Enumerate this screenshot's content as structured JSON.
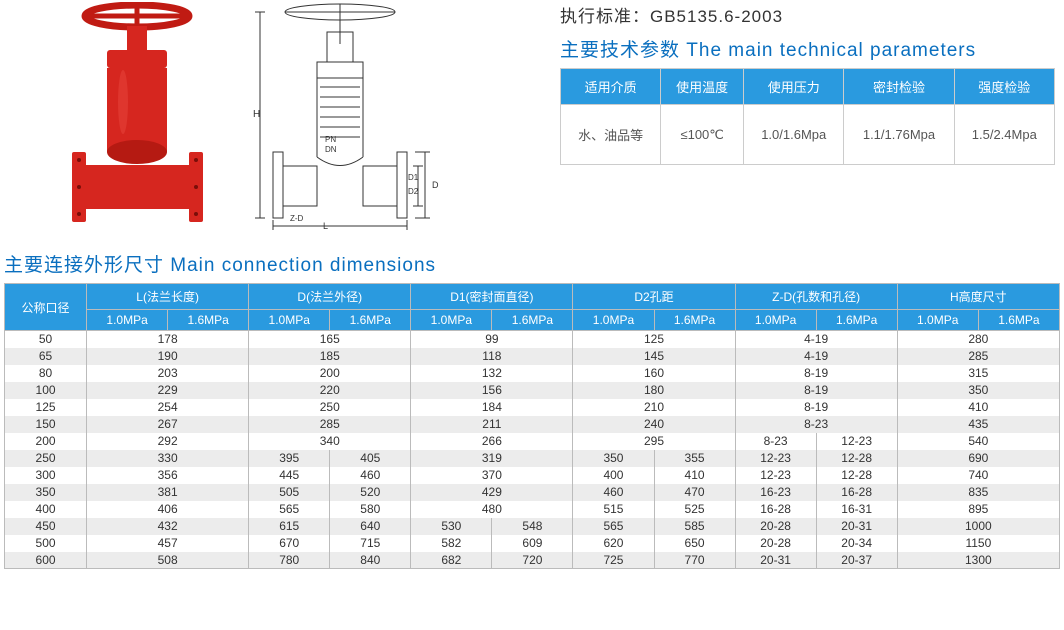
{
  "standard_label": "执行标准：",
  "standard_value": "GB5135.6-2003",
  "params_title": "主要技术参数 The main technical parameters",
  "params_headers": [
    "适用介质",
    "使用温度",
    "使用压力",
    "密封检验",
    "强度检验"
  ],
  "params_row": [
    "水、油品等",
    "≤100℃",
    "1.0/1.6Mpa",
    "1.1/1.76Mpa",
    "1.5/2.4Mpa"
  ],
  "dims_title": "主要连接外形尺寸 Main connection dimensions",
  "dims_top_headers": [
    "公称口径",
    "L(法兰长度)",
    "D(法兰外径)",
    "D1(密封面直径)",
    "D2孔距",
    "Z-D(孔数和孔径)",
    "H高度尺寸"
  ],
  "dims_sub": [
    "1.0MPa",
    "1.6MPa"
  ],
  "dims_rows": [
    {
      "dn": "50",
      "L": [
        "178"
      ],
      "D": [
        "165"
      ],
      "D1": [
        "99"
      ],
      "D2": [
        "125"
      ],
      "ZD": [
        "4-19"
      ],
      "H": [
        "280"
      ]
    },
    {
      "dn": "65",
      "L": [
        "190"
      ],
      "D": [
        "185"
      ],
      "D1": [
        "118"
      ],
      "D2": [
        "145"
      ],
      "ZD": [
        "4-19"
      ],
      "H": [
        "285"
      ]
    },
    {
      "dn": "80",
      "L": [
        "203"
      ],
      "D": [
        "200"
      ],
      "D1": [
        "132"
      ],
      "D2": [
        "160"
      ],
      "ZD": [
        "8-19"
      ],
      "H": [
        "315"
      ]
    },
    {
      "dn": "100",
      "L": [
        "229"
      ],
      "D": [
        "220"
      ],
      "D1": [
        "156"
      ],
      "D2": [
        "180"
      ],
      "ZD": [
        "8-19"
      ],
      "H": [
        "350"
      ]
    },
    {
      "dn": "125",
      "L": [
        "254"
      ],
      "D": [
        "250"
      ],
      "D1": [
        "184"
      ],
      "D2": [
        "210"
      ],
      "ZD": [
        "8-19"
      ],
      "H": [
        "410"
      ]
    },
    {
      "dn": "150",
      "L": [
        "267"
      ],
      "D": [
        "285"
      ],
      "D1": [
        "211"
      ],
      "D2": [
        "240"
      ],
      "ZD": [
        "8-23"
      ],
      "H": [
        "435"
      ]
    },
    {
      "dn": "200",
      "L": [
        "292"
      ],
      "D": [
        "340"
      ],
      "D1": [
        "266"
      ],
      "D2": [
        "295"
      ],
      "ZD": [
        "8-23",
        "12-23"
      ],
      "H": [
        "540"
      ]
    },
    {
      "dn": "250",
      "L": [
        "330"
      ],
      "D": [
        "395",
        "405"
      ],
      "D1": [
        "319"
      ],
      "D2": [
        "350",
        "355"
      ],
      "ZD": [
        "12-23",
        "12-28"
      ],
      "H": [
        "690"
      ]
    },
    {
      "dn": "300",
      "L": [
        "356"
      ],
      "D": [
        "445",
        "460"
      ],
      "D1": [
        "370"
      ],
      "D2": [
        "400",
        "410"
      ],
      "ZD": [
        "12-23",
        "12-28"
      ],
      "H": [
        "740"
      ]
    },
    {
      "dn": "350",
      "L": [
        "381"
      ],
      "D": [
        "505",
        "520"
      ],
      "D1": [
        "429"
      ],
      "D2": [
        "460",
        "470"
      ],
      "ZD": [
        "16-23",
        "16-28"
      ],
      "H": [
        "835"
      ]
    },
    {
      "dn": "400",
      "L": [
        "406"
      ],
      "D": [
        "565",
        "580"
      ],
      "D1": [
        "480"
      ],
      "D2": [
        "515",
        "525"
      ],
      "ZD": [
        "16-28",
        "16-31"
      ],
      "H": [
        "895"
      ]
    },
    {
      "dn": "450",
      "L": [
        "432"
      ],
      "D": [
        "615",
        "640"
      ],
      "D1": [
        "530",
        "548"
      ],
      "D2": [
        "565",
        "585"
      ],
      "ZD": [
        "20-28",
        "20-31"
      ],
      "H": [
        "1000"
      ]
    },
    {
      "dn": "500",
      "L": [
        "457"
      ],
      "D": [
        "670",
        "715"
      ],
      "D1": [
        "582",
        "609"
      ],
      "D2": [
        "620",
        "650"
      ],
      "ZD": [
        "20-28",
        "20-34"
      ],
      "H": [
        "1150"
      ]
    },
    {
      "dn": "600",
      "L": [
        "508"
      ],
      "D": [
        "780",
        "840"
      ],
      "D1": [
        "682",
        "720"
      ],
      "D2": [
        "725",
        "770"
      ],
      "ZD": [
        "20-31",
        "20-37"
      ],
      "H": [
        "1300"
      ]
    }
  ],
  "valve_photo_color": "#d6261f",
  "draw_color": "#333",
  "header_bg": "#2a9adf",
  "title_color": "#0a6fbf",
  "alt_row_bg": "#ececec",
  "border_color": "#bbb"
}
